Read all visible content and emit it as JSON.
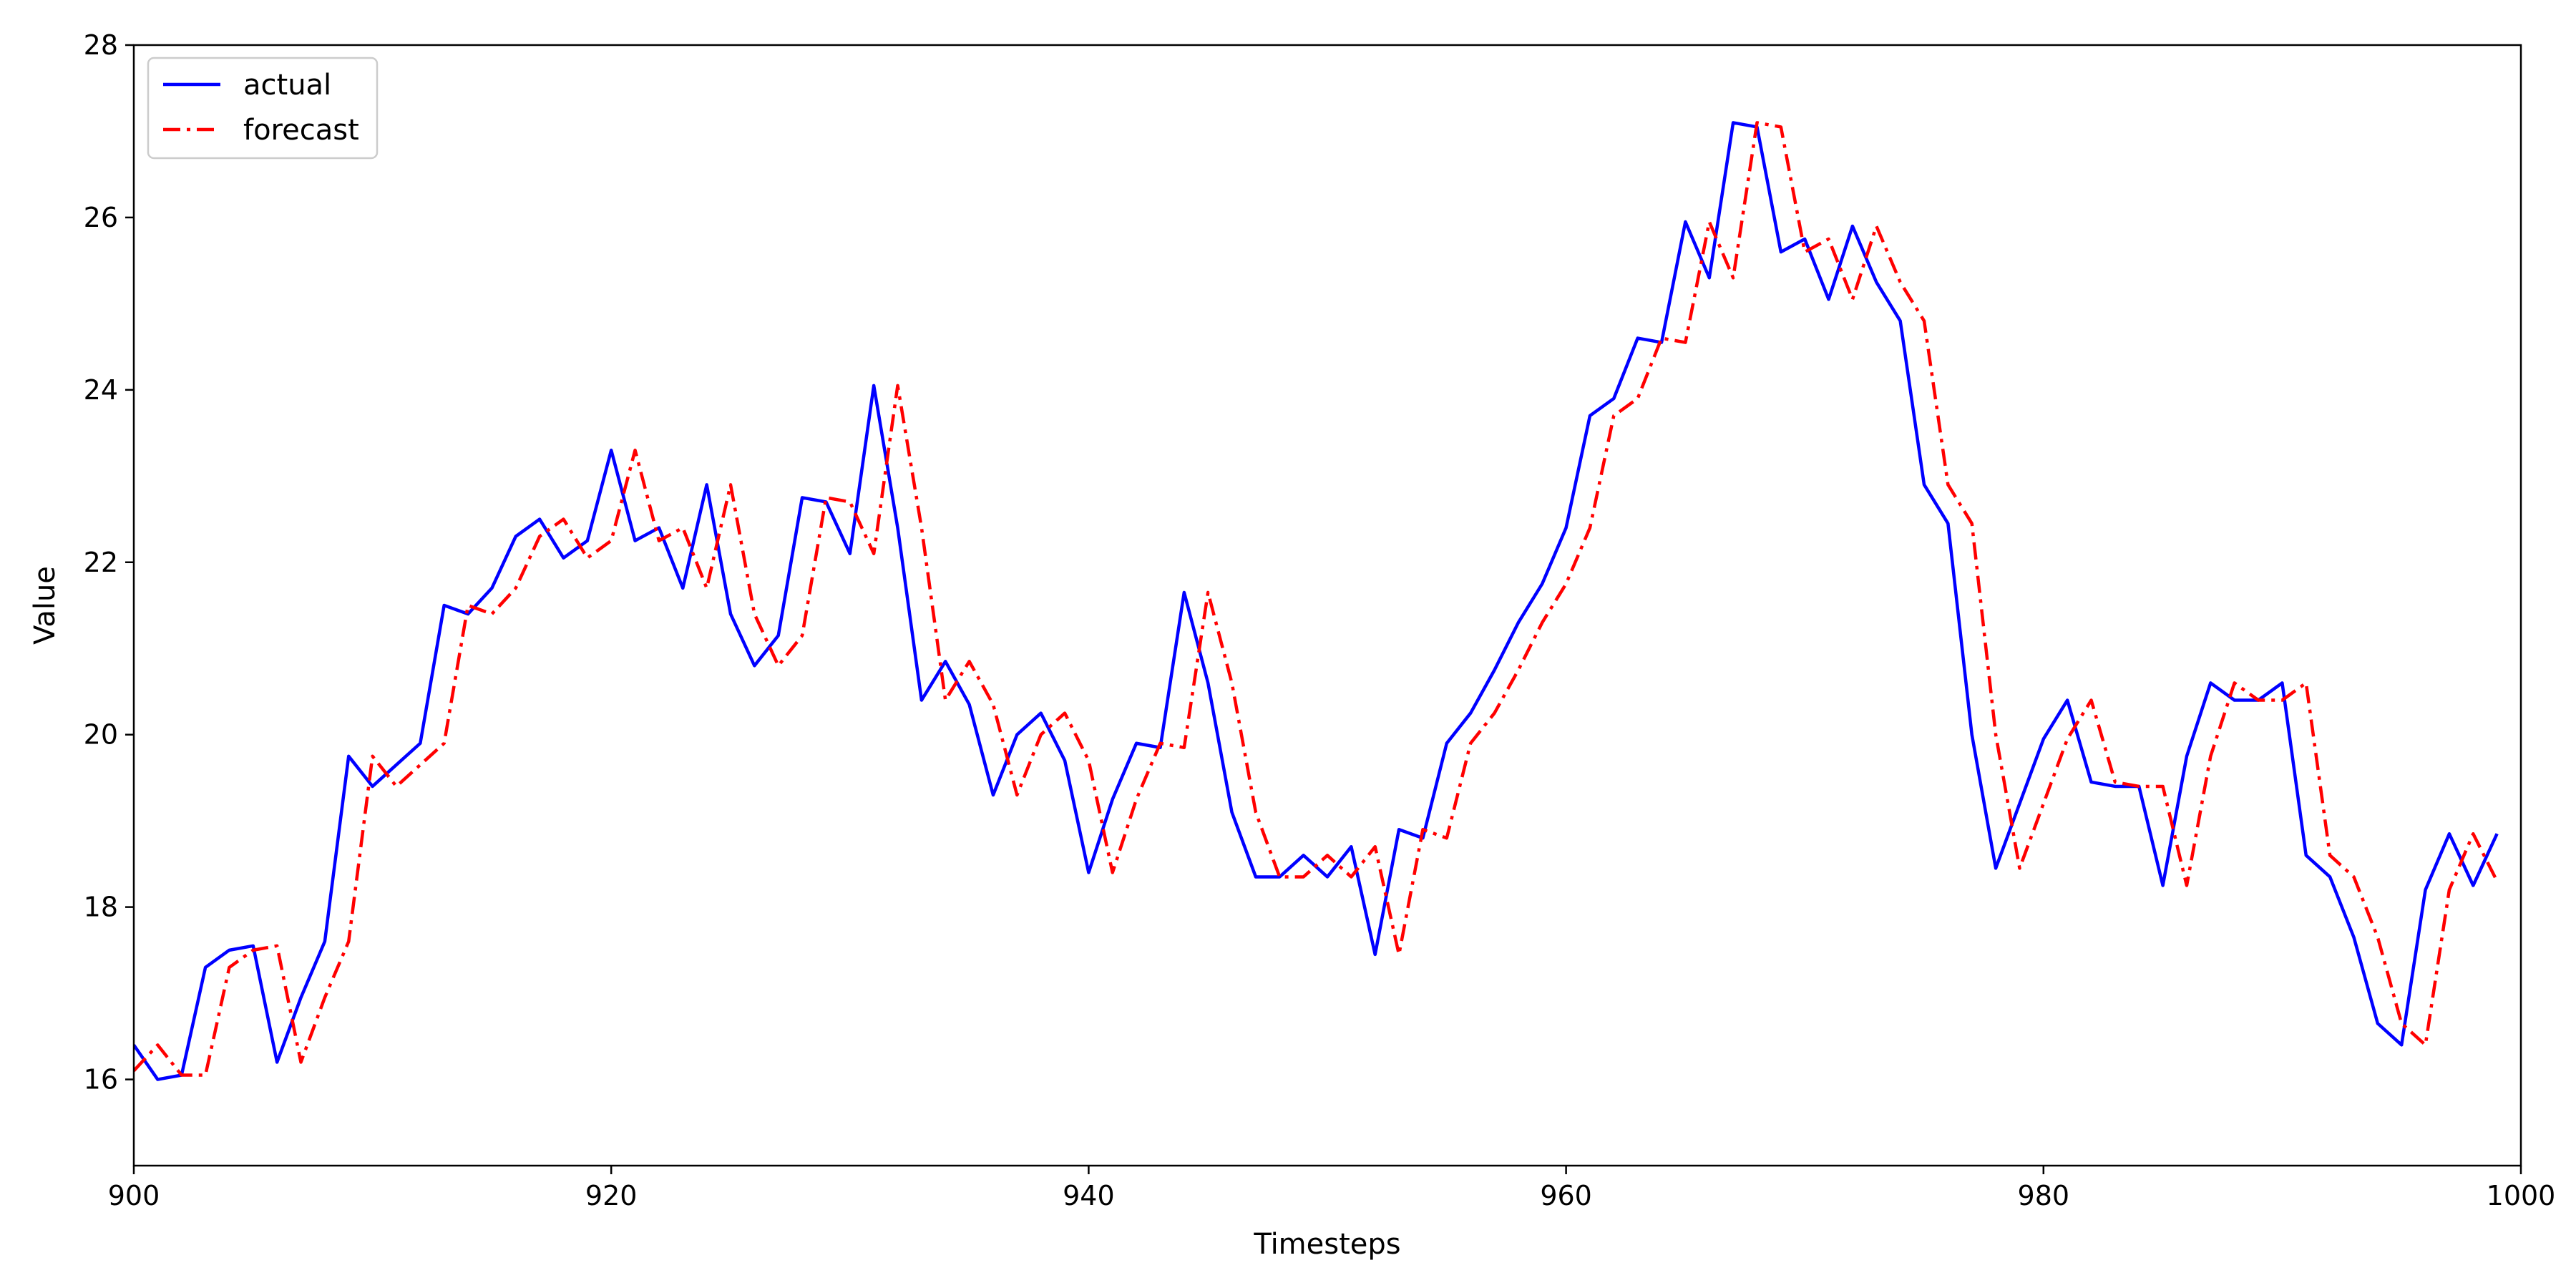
{
  "chart_data": {
    "type": "line",
    "title": "",
    "xlabel": "Timesteps",
    "ylabel": "Value",
    "xlim": [
      900,
      1000
    ],
    "ylim": [
      15,
      28
    ],
    "xticks": [
      900,
      920,
      940,
      960,
      980,
      1000
    ],
    "yticks": [
      16,
      18,
      20,
      22,
      24,
      26,
      28
    ],
    "grid": false,
    "legend_position": "top-left",
    "series": [
      {
        "name": "actual",
        "color": "#0000ff",
        "style": "solid",
        "x_start": 900,
        "values": [
          16.4,
          16.0,
          16.05,
          17.3,
          17.5,
          17.55,
          16.2,
          16.95,
          17.6,
          19.75,
          19.4,
          19.65,
          19.9,
          21.5,
          21.4,
          21.7,
          22.3,
          22.5,
          22.05,
          22.25,
          23.3,
          22.25,
          22.4,
          21.7,
          22.9,
          21.4,
          20.8,
          21.15,
          22.75,
          22.7,
          22.1,
          24.05,
          22.4,
          20.4,
          20.85,
          20.35,
          19.3,
          20.0,
          20.25,
          19.7,
          18.4,
          19.25,
          19.9,
          19.85,
          21.65,
          20.6,
          19.1,
          18.35,
          18.35,
          18.6,
          18.35,
          18.7,
          17.45,
          18.9,
          18.8,
          19.9,
          20.25,
          20.75,
          21.3,
          21.75,
          22.4,
          23.7,
          23.9,
          24.6,
          24.55,
          25.95,
          25.3,
          27.1,
          27.05,
          25.6,
          25.75,
          25.05,
          25.9,
          25.25,
          24.8,
          22.9,
          22.45,
          20.0,
          18.45,
          19.2,
          19.95,
          20.4,
          19.45,
          19.4,
          19.4,
          18.25,
          19.75,
          20.6,
          20.4,
          20.4,
          20.6,
          18.6,
          18.35,
          17.65,
          16.65,
          16.4,
          18.2,
          18.85,
          18.25,
          18.85
        ]
      },
      {
        "name": "forecast",
        "color": "#ff0000",
        "style": "dashdot",
        "x_start": 900,
        "values": [
          16.1,
          16.4,
          16.05,
          16.05,
          17.3,
          17.5,
          17.55,
          16.2,
          16.95,
          17.6,
          19.75,
          19.4,
          19.65,
          19.9,
          21.5,
          21.4,
          21.7,
          22.3,
          22.5,
          22.05,
          22.25,
          23.3,
          22.25,
          22.4,
          21.7,
          22.9,
          21.4,
          20.8,
          21.15,
          22.75,
          22.7,
          22.1,
          24.05,
          22.4,
          20.4,
          20.85,
          20.35,
          19.3,
          20.0,
          20.25,
          19.7,
          18.4,
          19.25,
          19.9,
          19.85,
          21.65,
          20.6,
          19.1,
          18.35,
          18.35,
          18.6,
          18.35,
          18.7,
          17.45,
          18.9,
          18.8,
          19.9,
          20.25,
          20.75,
          21.3,
          21.75,
          22.4,
          23.7,
          23.9,
          24.6,
          24.55,
          25.95,
          25.3,
          27.1,
          27.05,
          25.6,
          25.75,
          25.05,
          25.9,
          25.25,
          24.8,
          22.9,
          22.45,
          20.0,
          18.45,
          19.2,
          19.95,
          20.4,
          19.45,
          19.4,
          19.4,
          18.25,
          19.75,
          20.6,
          20.4,
          20.4,
          20.6,
          18.6,
          18.35,
          17.65,
          16.65,
          16.4,
          18.2,
          18.85,
          18.3
        ]
      }
    ]
  }
}
